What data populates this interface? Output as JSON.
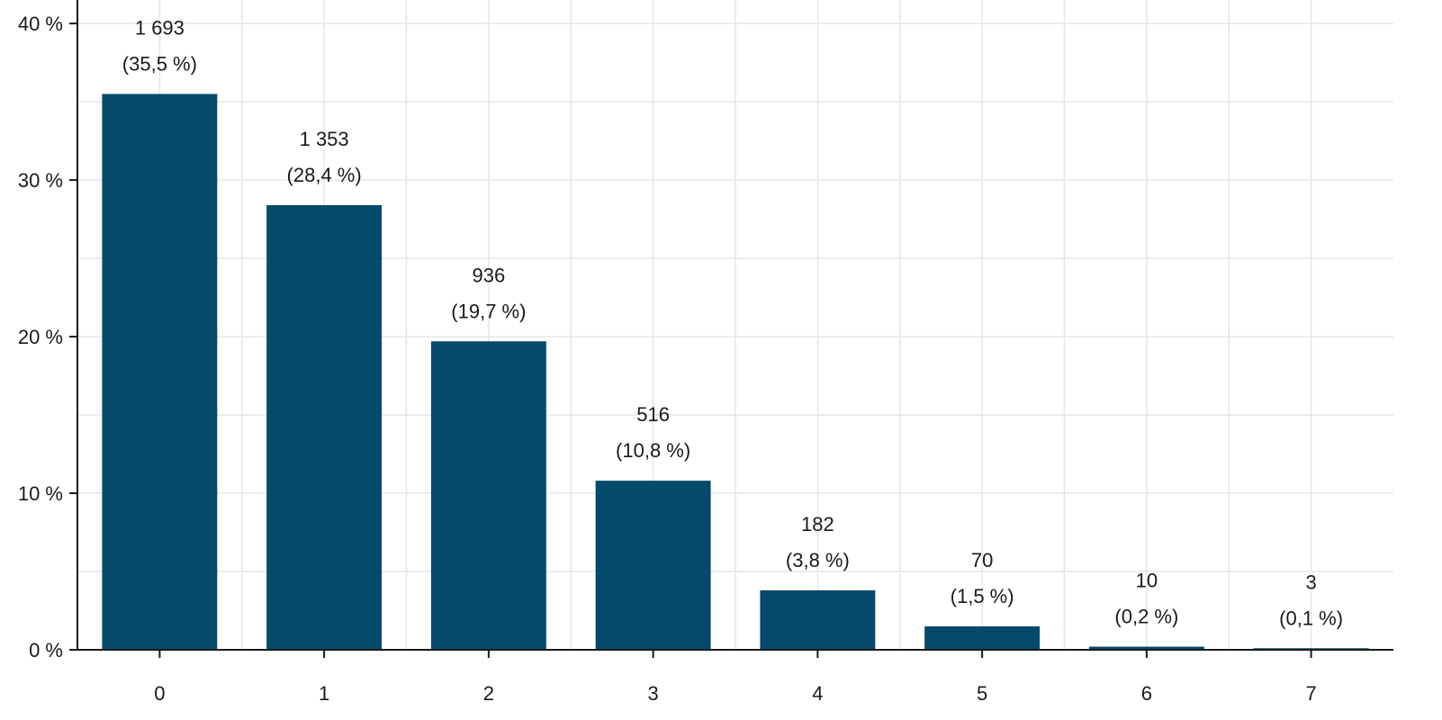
{
  "chart_data": {
    "type": "bar",
    "title": "",
    "xlabel": "",
    "ylabel": "",
    "categories": [
      "0",
      "1",
      "2",
      "3",
      "4",
      "5",
      "6",
      "7"
    ],
    "values": [
      35.5,
      28.4,
      19.7,
      10.8,
      3.8,
      1.5,
      0.2,
      0.1
    ],
    "counts": [
      "1 693",
      "1 353",
      "936",
      "516",
      "182",
      "70",
      "10",
      "3"
    ],
    "percent_labels": [
      "(35,5 %)",
      "(28,4 %)",
      "(19,7 %)",
      "(10,8 %)",
      "(3,8 %)",
      "(1,5 %)",
      "(0,2 %)",
      "(0,1 %)"
    ],
    "ylim": [
      0,
      41.5
    ],
    "yticks": [
      0,
      10,
      20,
      30,
      40
    ],
    "ytick_labels": [
      "0 %",
      "10 %",
      "20 %",
      "30 %",
      "40 %"
    ],
    "grid": true,
    "legend": "none",
    "colors": {
      "bar": "#064a6b",
      "grid": "#e6e6e6",
      "axis": "#1a1a1a"
    }
  }
}
